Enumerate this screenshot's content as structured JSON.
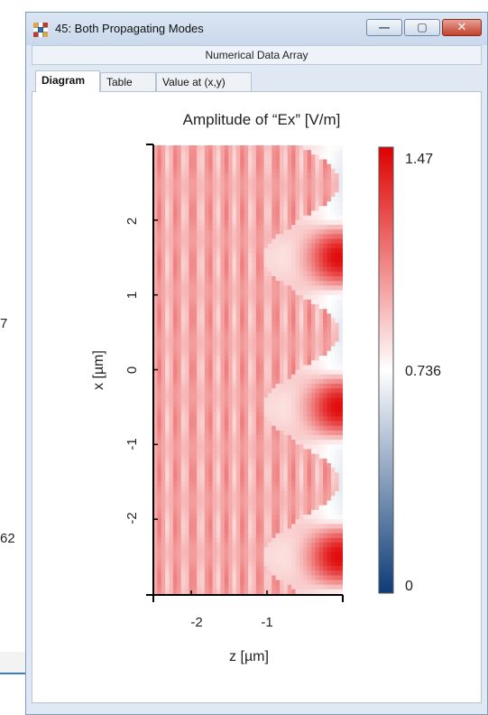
{
  "background_window": {
    "fragments": [
      "7",
      "62"
    ]
  },
  "window": {
    "title": "45: Both Propagating Modes",
    "subtitle": "Numerical Data Array",
    "controls": {
      "minimize": "—",
      "maximize": "▢",
      "close": "✕"
    },
    "tabs": [
      {
        "label": "Diagram",
        "active": true
      },
      {
        "label": "Table",
        "active": false
      },
      {
        "label": "Value at (x,y)",
        "active": false
      }
    ]
  },
  "chart_data": {
    "type": "heatmap",
    "title": "Amplitude of “Ex”  [V/m]",
    "xlabel": "z [µm]",
    "ylabel": "x [µm]",
    "x_ticks": [
      "-2",
      "-1"
    ],
    "y_ticks": [
      "2",
      "1",
      "0",
      "-1",
      "-2"
    ],
    "xlim": [
      -2.5,
      0
    ],
    "ylim": [
      -3,
      3
    ],
    "colorbar": {
      "max": "1.47",
      "mid": "0.736",
      "min": "0",
      "range": [
        0,
        1.47
      ]
    },
    "colormap": [
      "#0d3c78",
      "#ffffff",
      "#e00000"
    ],
    "pattern": "sinusoidal interface with period 2 between left fringe region (~0.9) and right lobes up to 1.47"
  }
}
